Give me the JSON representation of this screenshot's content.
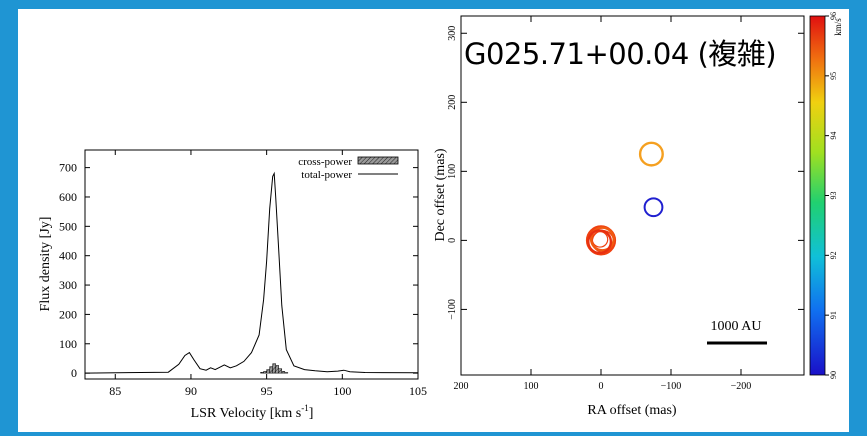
{
  "slide": {
    "title": "G025.71+00.04 (複雑)"
  },
  "chart_data": [
    {
      "type": "line",
      "xlabel": "LSR Velocity [km s",
      "xlabel_sup": "-1",
      "xlabel_end": "]",
      "ylabel": "Flux density [Jy]",
      "xlim": [
        83,
        105
      ],
      "ylim": [
        -20,
        760
      ],
      "x_ticks": [
        85,
        90,
        95,
        100,
        105
      ],
      "y_ticks": [
        0,
        100,
        200,
        300,
        400,
        500,
        600,
        700
      ],
      "legend_position": "top-right",
      "series": [
        {
          "name": "total-power",
          "style": "line",
          "x": [
            83.0,
            88.5,
            89.2,
            89.6,
            89.9,
            90.2,
            90.6,
            91.0,
            91.3,
            91.6,
            91.9,
            92.2,
            92.6,
            93.0,
            93.5,
            94.0,
            94.5,
            94.8,
            95.0,
            95.2,
            95.4,
            95.5,
            95.6,
            95.8,
            96.0,
            96.3,
            96.8,
            97.5,
            98.2,
            99.0,
            99.7,
            100.1,
            100.5,
            101.5,
            105.0
          ],
          "y": [
            0,
            3,
            30,
            60,
            70,
            45,
            15,
            10,
            18,
            12,
            20,
            28,
            18,
            25,
            40,
            70,
            130,
            250,
            380,
            560,
            670,
            680,
            600,
            420,
            230,
            80,
            25,
            12,
            8,
            5,
            7,
            10,
            5,
            2,
            1
          ]
        },
        {
          "name": "cross-power",
          "style": "hatched-bars",
          "x": [
            94.7,
            94.9,
            95.1,
            95.3,
            95.5,
            95.7,
            95.9,
            96.1,
            96.3
          ],
          "y": [
            3,
            6,
            12,
            22,
            32,
            26,
            15,
            6,
            2
          ]
        }
      ]
    },
    {
      "type": "scatter",
      "xlabel": "RA offset (mas)",
      "ylabel": "Dec offset (mas)",
      "xlim": [
        200,
        -290
      ],
      "ylim": [
        -195,
        325
      ],
      "x_ticks": [
        200,
        100,
        0,
        -100,
        -200
      ],
      "y_ticks": [
        -100,
        0,
        100,
        200,
        300
      ],
      "scale_bar_label": "1000 AU",
      "colorbar": {
        "unit": "km/s",
        "range": [
          90,
          96
        ],
        "ticks": [
          90,
          91,
          92,
          93,
          94,
          95,
          96
        ]
      },
      "points": [
        {
          "ra": 0,
          "dec": 0,
          "vlsr": 95.5,
          "size": 3,
          "color": "#f04010"
        },
        {
          "ra": -2,
          "dec": 2,
          "vlsr": 95.3,
          "size": 2,
          "color": "#f05a10"
        },
        {
          "ra": 2,
          "dec": -2,
          "vlsr": 95.6,
          "size": 2,
          "color": "#e83010"
        },
        {
          "ra": -72,
          "dec": 125,
          "vlsr": 94.8,
          "size": 2,
          "color": "#f5a020"
        },
        {
          "ra": -75,
          "dec": 48,
          "vlsr": 90.2,
          "size": 1,
          "color": "#2020d0"
        }
      ]
    }
  ]
}
